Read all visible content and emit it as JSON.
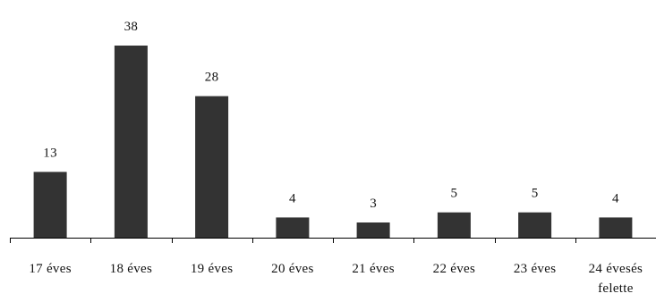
{
  "chart_data": {
    "type": "bar",
    "categories": [
      "17 éves",
      "18 éves",
      "19 éves",
      "20 éves",
      "21 éves",
      "22 éves",
      "23 éves",
      "24 évesés felette"
    ],
    "tick_label_lines": [
      [
        "17 éves"
      ],
      [
        "18 éves"
      ],
      [
        "19 éves"
      ],
      [
        "20 éves"
      ],
      [
        "21 éves"
      ],
      [
        "22 éves"
      ],
      [
        "23 éves"
      ],
      [
        "24 évesés",
        "felette"
      ]
    ],
    "values": [
      13,
      38,
      28,
      4,
      3,
      5,
      5,
      4
    ],
    "data_labels": [
      "13",
      "38",
      "28",
      "4",
      "3",
      "5",
      "5",
      "4"
    ],
    "ylim": [
      0,
      40
    ],
    "bar_color": "#333333",
    "grid": false,
    "legend": "none"
  }
}
